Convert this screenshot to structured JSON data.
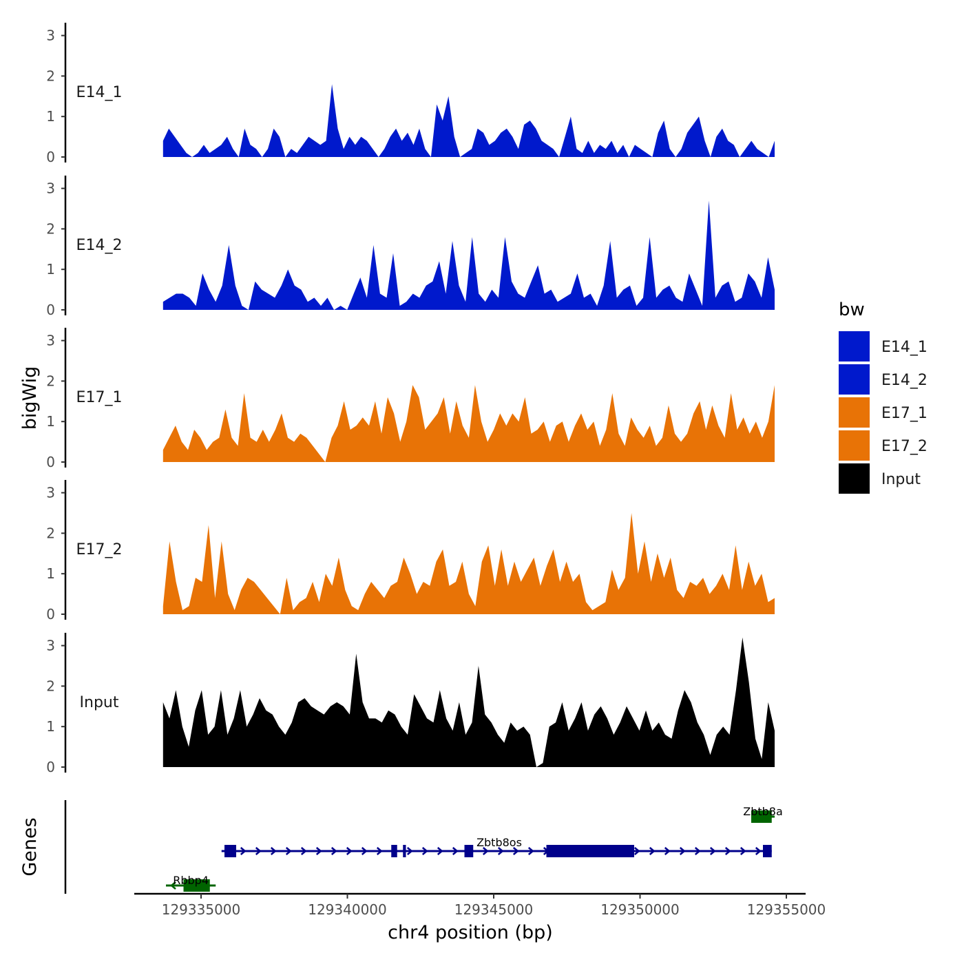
{
  "chart_data": {
    "type": "area",
    "title": "",
    "ylabel": "bigWig",
    "xlabel": "chr4 position (bp)",
    "xlim": [
      129332300,
      129356100
    ],
    "ylim": [
      0,
      3.3
    ],
    "x_ticks": [
      129335000,
      129340000,
      129345000,
      129350000,
      129355000
    ],
    "x_tick_labels": [
      "129335000",
      "129340000",
      "129345000",
      "129350000",
      "129355000"
    ],
    "y_ticks": [
      0,
      1,
      2,
      3
    ],
    "y_tick_labels": [
      "0",
      "1",
      "2",
      "3"
    ],
    "tracks_x_range": [
      129333700,
      129354600
    ],
    "legend": {
      "title": "bw",
      "position": "right",
      "entries": [
        {
          "label": "E14_1",
          "color": "#0019CC"
        },
        {
          "label": "E14_2",
          "color": "#0019CC"
        },
        {
          "label": "E17_1",
          "color": "#E87306"
        },
        {
          "label": "E17_2",
          "color": "#E87306"
        },
        {
          "label": "Input",
          "color": "#000000"
        }
      ]
    },
    "series": [
      {
        "name": "E14_1",
        "color": "#0019CC",
        "values": [
          0.4,
          0.7,
          0.5,
          0.3,
          0.1,
          0.0,
          0.1,
          0.3,
          0.1,
          0.2,
          0.3,
          0.5,
          0.2,
          0.0,
          0.7,
          0.3,
          0.2,
          0.0,
          0.2,
          0.7,
          0.5,
          0.0,
          0.2,
          0.1,
          0.3,
          0.5,
          0.4,
          0.3,
          0.4,
          1.8,
          0.7,
          0.2,
          0.5,
          0.3,
          0.5,
          0.4,
          0.2,
          0.0,
          0.2,
          0.5,
          0.7,
          0.4,
          0.6,
          0.3,
          0.7,
          0.2,
          0.0,
          1.3,
          0.9,
          1.5,
          0.5,
          0.0,
          0.1,
          0.2,
          0.7,
          0.6,
          0.3,
          0.4,
          0.6,
          0.7,
          0.5,
          0.2,
          0.8,
          0.9,
          0.7,
          0.4,
          0.3,
          0.2,
          0.0,
          0.5,
          1.0,
          0.2,
          0.1,
          0.4,
          0.1,
          0.3,
          0.2,
          0.4,
          0.1,
          0.3,
          0.0,
          0.3,
          0.2,
          0.1,
          0.0,
          0.6,
          0.9,
          0.2,
          0.0,
          0.2,
          0.6,
          0.8,
          1.0,
          0.4,
          0.0,
          0.5,
          0.7,
          0.4,
          0.3,
          0.0,
          0.2,
          0.4,
          0.2,
          0.1,
          0.0,
          0.4
        ]
      },
      {
        "name": "E14_2",
        "color": "#0019CC",
        "values": [
          0.2,
          0.3,
          0.4,
          0.4,
          0.3,
          0.1,
          0.9,
          0.5,
          0.2,
          0.6,
          1.6,
          0.6,
          0.1,
          0.0,
          0.7,
          0.5,
          0.4,
          0.3,
          0.6,
          1.0,
          0.6,
          0.5,
          0.2,
          0.3,
          0.1,
          0.3,
          0.0,
          0.1,
          0.0,
          0.4,
          0.8,
          0.3,
          1.6,
          0.4,
          0.3,
          1.4,
          0.1,
          0.2,
          0.4,
          0.3,
          0.6,
          0.7,
          1.2,
          0.4,
          1.7,
          0.6,
          0.2,
          1.8,
          0.4,
          0.2,
          0.5,
          0.3,
          1.8,
          0.7,
          0.4,
          0.3,
          0.7,
          1.1,
          0.4,
          0.5,
          0.2,
          0.3,
          0.4,
          0.9,
          0.3,
          0.4,
          0.1,
          0.6,
          1.7,
          0.3,
          0.5,
          0.6,
          0.1,
          0.3,
          1.8,
          0.3,
          0.5,
          0.6,
          0.3,
          0.2,
          0.9,
          0.5,
          0.1,
          2.7,
          0.3,
          0.6,
          0.7,
          0.2,
          0.3,
          0.9,
          0.7,
          0.3,
          1.3,
          0.5
        ]
      },
      {
        "name": "E17_1",
        "color": "#E87306",
        "values": [
          0.3,
          0.6,
          0.9,
          0.5,
          0.3,
          0.8,
          0.6,
          0.3,
          0.5,
          0.6,
          1.3,
          0.6,
          0.4,
          1.7,
          0.6,
          0.5,
          0.8,
          0.5,
          0.8,
          1.2,
          0.6,
          0.5,
          0.7,
          0.6,
          0.4,
          0.2,
          0.0,
          0.6,
          0.9,
          1.5,
          0.8,
          0.9,
          1.1,
          0.9,
          1.5,
          0.7,
          1.6,
          1.2,
          0.5,
          1.0,
          1.9,
          1.6,
          0.8,
          1.0,
          1.2,
          1.6,
          0.7,
          1.5,
          0.9,
          0.6,
          1.9,
          1.0,
          0.5,
          0.8,
          1.2,
          0.9,
          1.2,
          1.0,
          1.6,
          0.7,
          0.8,
          1.0,
          0.5,
          0.9,
          1.0,
          0.5,
          0.9,
          1.2,
          0.8,
          1.0,
          0.4,
          0.8,
          1.7,
          0.7,
          0.4,
          1.1,
          0.8,
          0.6,
          0.9,
          0.4,
          0.6,
          1.4,
          0.7,
          0.5,
          0.7,
          1.2,
          1.5,
          0.8,
          1.4,
          0.9,
          0.6,
          1.7,
          0.8,
          1.1,
          0.7,
          1.0,
          0.6,
          1.0,
          1.9
        ]
      },
      {
        "name": "E17_2",
        "color": "#E87306",
        "values": [
          0.2,
          1.8,
          0.8,
          0.1,
          0.2,
          0.9,
          0.8,
          2.2,
          0.4,
          1.8,
          0.5,
          0.1,
          0.6,
          0.9,
          0.8,
          0.6,
          0.4,
          0.2,
          0.0,
          0.9,
          0.1,
          0.3,
          0.4,
          0.8,
          0.3,
          1.0,
          0.7,
          1.4,
          0.6,
          0.2,
          0.1,
          0.5,
          0.8,
          0.6,
          0.4,
          0.7,
          0.8,
          1.4,
          1.0,
          0.5,
          0.8,
          0.7,
          1.3,
          1.6,
          0.7,
          0.8,
          1.3,
          0.5,
          0.2,
          1.3,
          1.7,
          0.7,
          1.6,
          0.7,
          1.3,
          0.8,
          1.1,
          1.4,
          0.7,
          1.2,
          1.6,
          0.8,
          1.3,
          0.8,
          1.0,
          0.3,
          0.1,
          0.2,
          0.3,
          1.1,
          0.6,
          0.9,
          2.5,
          1.0,
          1.8,
          0.8,
          1.5,
          0.9,
          1.4,
          0.6,
          0.4,
          0.8,
          0.7,
          0.9,
          0.5,
          0.7,
          1.0,
          0.6,
          1.7,
          0.6,
          1.3,
          0.7,
          1.0,
          0.3,
          0.4
        ]
      },
      {
        "name": "Input",
        "color": "#000000",
        "values": [
          1.6,
          1.2,
          1.9,
          1.0,
          0.5,
          1.4,
          1.9,
          0.8,
          1.0,
          1.9,
          0.8,
          1.2,
          1.9,
          1.0,
          1.3,
          1.7,
          1.4,
          1.3,
          1.0,
          0.8,
          1.1,
          1.6,
          1.7,
          1.5,
          1.4,
          1.3,
          1.5,
          1.6,
          1.5,
          1.3,
          2.8,
          1.6,
          1.2,
          1.2,
          1.1,
          1.4,
          1.3,
          1.0,
          0.8,
          1.8,
          1.5,
          1.2,
          1.1,
          1.9,
          1.2,
          0.9,
          1.6,
          0.8,
          1.1,
          2.5,
          1.3,
          1.1,
          0.8,
          0.6,
          1.1,
          0.9,
          1.0,
          0.8,
          0.0,
          0.1,
          1.0,
          1.1,
          1.6,
          0.9,
          1.2,
          1.6,
          0.9,
          1.3,
          1.5,
          1.2,
          0.8,
          1.1,
          1.5,
          1.2,
          0.9,
          1.4,
          0.9,
          1.1,
          0.8,
          0.7,
          1.4,
          1.9,
          1.6,
          1.1,
          0.8,
          0.3,
          0.8,
          1.0,
          0.8,
          1.9,
          3.2,
          2.1,
          0.7,
          0.2,
          1.6,
          0.9
        ]
      }
    ],
    "genes": [
      {
        "name": "Rbbp4",
        "strand": "-",
        "color": "#006400",
        "start": 129333800,
        "end": 129335500,
        "row": 0,
        "exons": [
          [
            129334400,
            129335300
          ]
        ]
      },
      {
        "name": "Zbtb8os",
        "strand": "+",
        "color": "#00008B",
        "start": 129335700,
        "end": 129354500,
        "row": 1,
        "exons": [
          [
            129335800,
            129336200
          ],
          [
            129341500,
            129341700
          ],
          [
            129341900,
            129342000
          ],
          [
            129344000,
            129344300
          ],
          [
            129346800,
            129349800
          ],
          [
            129354200,
            129354500
          ]
        ]
      },
      {
        "name": "Zbtb8a",
        "strand": "-",
        "color": "#006400",
        "start": 129353800,
        "end": 129354600,
        "row": 2,
        "exons": [
          [
            129353800,
            129354500
          ]
        ]
      }
    ],
    "genes_ylabel": "Genes"
  }
}
